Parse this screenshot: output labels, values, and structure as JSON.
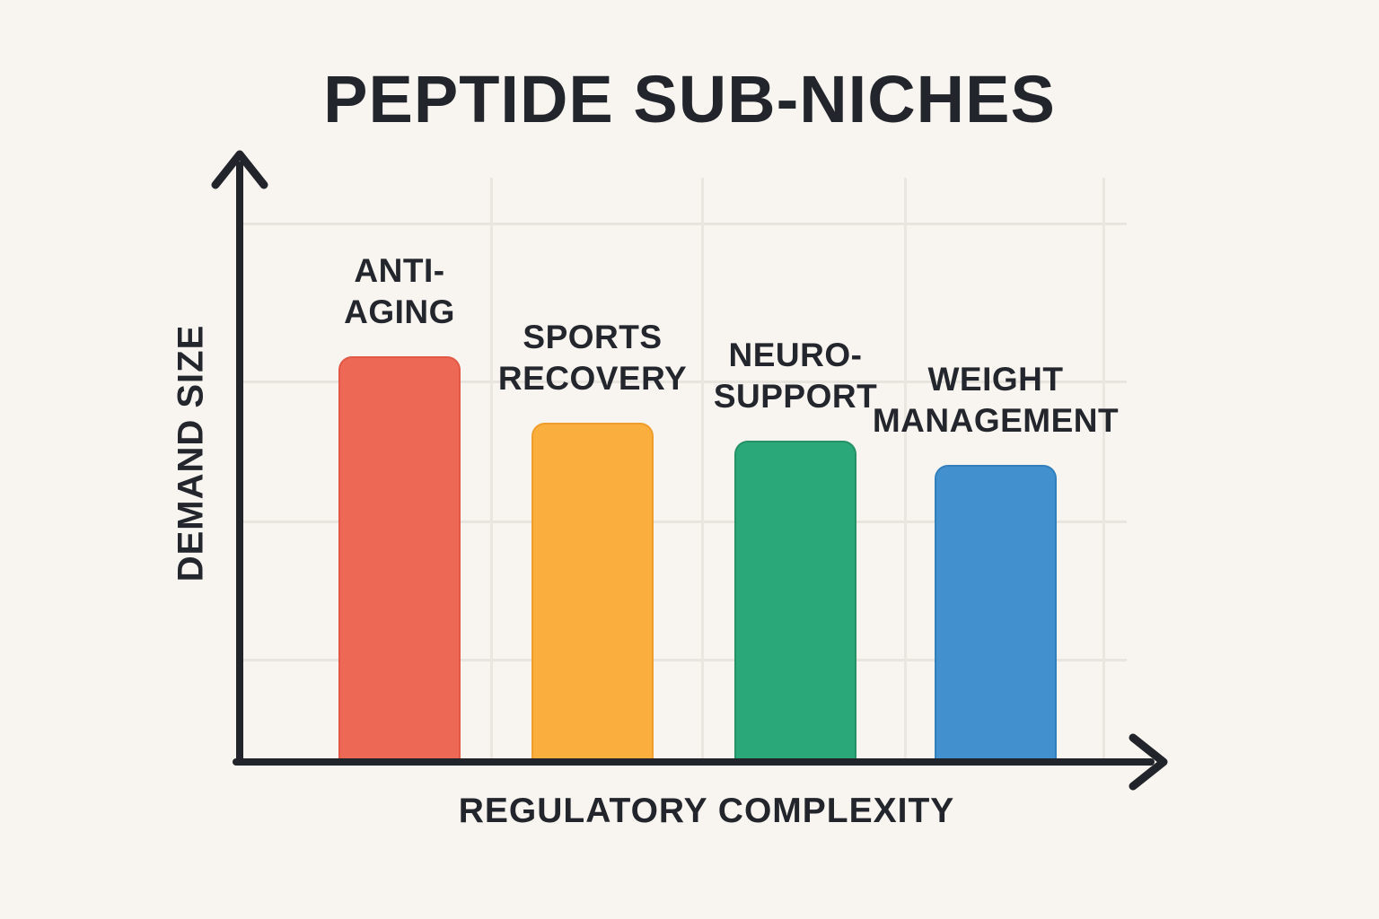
{
  "title": "PEPTIDE SUB-NICHES",
  "colors": {
    "background": "#F8F5F0",
    "text": "#23262C",
    "axis": "#21242A",
    "grid": "#E8E4DE",
    "bar_red": "#EE6955",
    "bar_yellow": "#FAAE3E",
    "bar_green": "#2BA87A",
    "bar_blue": "#4290CD"
  },
  "chart_data": {
    "type": "bar",
    "title": "PEPTIDE SUB-NICHES",
    "xlabel": "REGULATORY COMPLEXITY",
    "ylabel": "DEMAND SIZE",
    "categories": [
      "ANTI-AGING",
      "SPORTS RECOVERY",
      "NEURO-SUPPORT",
      "WEIGHT MANAGEMENT"
    ],
    "values": [
      67,
      56,
      53,
      49
    ],
    "values_unit": "estimated percent of y-axis height (chart shows no numeric tick labels)",
    "ylim": [
      0,
      100
    ],
    "grid": "on",
    "legend": "none",
    "axes_style": "arrow-tipped conceptual axes without tick marks",
    "bars": [
      {
        "label": "ANTI-AGING",
        "label_lines": [
          "ANTI-",
          "AGING"
        ],
        "value": 67,
        "color": "#EE6955",
        "border_color": "#E25745"
      },
      {
        "label": "SPORTS RECOVERY",
        "label_lines": [
          "SPORTS",
          "RECOVERY"
        ],
        "value": 56,
        "color": "#FAAE3E",
        "border_color": "#EF9D2B"
      },
      {
        "label": "NEURO-SUPPORT",
        "label_lines": [
          "NEURO-",
          "SUPPORT"
        ],
        "value": 53,
        "color": "#2BA87A",
        "border_color": "#259165"
      },
      {
        "label": "WEIGHT MANAGEMENT",
        "label_lines": [
          "WEIGHT",
          "MANAGEMENT"
        ],
        "value": 49,
        "color": "#4290CD",
        "border_color": "#337FBB"
      }
    ]
  }
}
